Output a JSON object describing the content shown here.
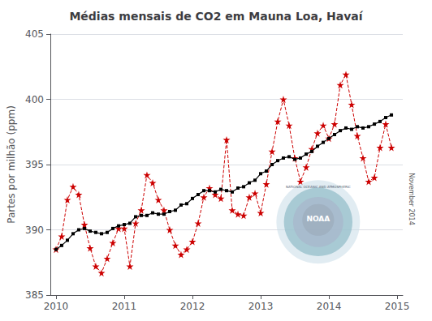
{
  "chart_data": {
    "type": "line",
    "title": "Médias mensais de CO2 em Mauna Loa, Havaí",
    "ylabel": "Partes por milhão (ppm)",
    "xlim": [
      2009.917,
      2015.083
    ],
    "ylim": [
      385,
      405
    ],
    "xticks": [
      2010,
      2011,
      2012,
      2013,
      2014,
      2015
    ],
    "yticks": [
      385,
      390,
      395,
      400,
      405
    ],
    "grid": true,
    "annotations": [
      "NOAA",
      "NATIONAL OCEANIC AND ATMOSPHERIC",
      "November 2014"
    ],
    "x": [
      2010.0,
      2010.083,
      2010.167,
      2010.25,
      2010.333,
      2010.417,
      2010.5,
      2010.583,
      2010.667,
      2010.75,
      2010.833,
      2010.917,
      2011.0,
      2011.083,
      2011.167,
      2011.25,
      2011.333,
      2011.417,
      2011.5,
      2011.583,
      2011.667,
      2011.75,
      2011.833,
      2011.917,
      2012.0,
      2012.083,
      2012.167,
      2012.25,
      2012.333,
      2012.417,
      2012.5,
      2012.583,
      2012.667,
      2012.75,
      2012.833,
      2012.917,
      2013.0,
      2013.083,
      2013.167,
      2013.25,
      2013.333,
      2013.417,
      2013.5,
      2013.583,
      2013.667,
      2013.75,
      2013.833,
      2013.917,
      2014.0,
      2014.083,
      2014.167,
      2014.25,
      2014.333,
      2014.417,
      2014.5,
      2014.583,
      2014.667,
      2014.75,
      2014.833,
      2014.917
    ],
    "series": [
      {
        "color": "#cc0000",
        "line_style": "dashed",
        "marker": "star",
        "values": [
          388.5,
          389.5,
          392.3,
          393.3,
          392.7,
          390.4,
          388.6,
          387.2,
          386.7,
          387.8,
          389.0,
          390.1,
          390.1,
          387.2,
          390.5,
          391.5,
          394.2,
          393.6,
          392.3,
          391.5,
          390.0,
          388.8,
          388.1,
          388.5,
          389.1,
          390.5,
          392.5,
          393.2,
          392.7,
          392.4,
          396.9,
          391.5,
          391.2,
          391.1,
          392.5,
          392.8,
          391.3,
          393.5,
          396.0,
          398.3,
          400.0,
          398.0,
          395.5,
          393.7,
          394.8,
          396.2,
          397.4,
          398.0,
          397.0,
          398.1,
          401.1,
          401.9,
          399.6,
          397.2,
          395.5,
          393.7,
          394.0,
          396.3,
          398.1,
          396.3
        ]
      },
      {
        "color": "#000000",
        "line_style": "solid",
        "marker": "square",
        "values": [
          388.5,
          388.8,
          389.2,
          389.7,
          390.0,
          390.1,
          389.9,
          389.8,
          389.7,
          389.8,
          390.1,
          390.3,
          390.4,
          390.5,
          391.0,
          391.1,
          391.1,
          391.3,
          391.2,
          391.2,
          391.4,
          391.5,
          391.9,
          392.0,
          392.4,
          392.7,
          393.0,
          393.0,
          392.9,
          393.1,
          393.0,
          392.9,
          393.2,
          393.3,
          393.6,
          393.8,
          394.3,
          394.5,
          395.0,
          395.3,
          395.5,
          395.6,
          395.4,
          395.5,
          395.8,
          396.0,
          396.4,
          396.7,
          397.0,
          397.3,
          397.6,
          397.8,
          397.7,
          397.9,
          397.8,
          397.9,
          398.1,
          398.3,
          398.6,
          398.8
        ]
      }
    ]
  }
}
